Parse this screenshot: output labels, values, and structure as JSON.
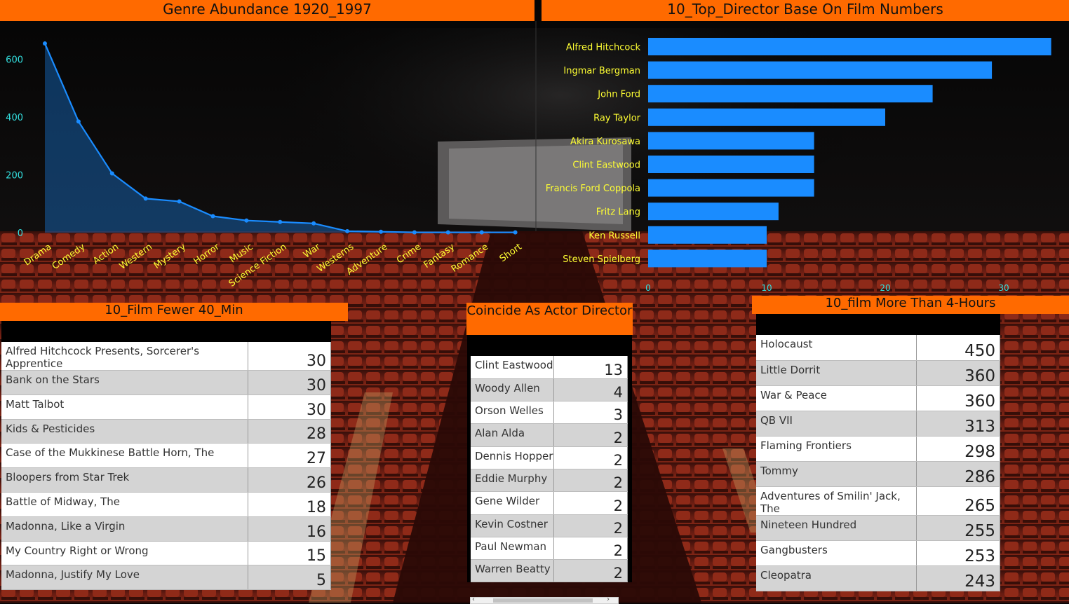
{
  "titles": {
    "genre": "Genre Abundance 1920_1997",
    "director": "10_Top_Director Base On Film Numbers",
    "short_films": "10_Film Fewer 40_Min",
    "actor_director": "Coincide As Actor Director",
    "long_films": "10_film More Than 4-Hours"
  },
  "colors": {
    "header": "#ff6a00",
    "bar": "#1a8cff",
    "line": "#1a8cff",
    "category_label": "#ffff33",
    "axis_tick": "#33e0e0"
  },
  "chart_data": [
    {
      "type": "area",
      "title": "Genre Abundance 1920_1997",
      "categories": [
        "Drama",
        "Comedy",
        "Action",
        "Western",
        "Mystery",
        "Horror",
        "Music",
        "Science Fiction",
        "War",
        "Westerns",
        "Adventure",
        "Crime",
        "Fantasy",
        "Romance",
        "Short"
      ],
      "values": [
        655,
        385,
        205,
        118,
        108,
        57,
        42,
        37,
        32,
        5,
        3,
        1,
        1,
        1,
        1
      ],
      "yticks": [
        0,
        200,
        400,
        600
      ],
      "ylim": [
        0,
        660
      ],
      "grid": false
    },
    {
      "type": "bar",
      "orientation": "horizontal",
      "title": "10_Top_Director Base On Film Numbers",
      "categories": [
        "Alfred Hitchcock",
        "Ingmar Bergman",
        "John Ford",
        "Ray Taylor",
        "Akira Kurosawa",
        "Clint Eastwood",
        "Francis Ford Coppola",
        "Fritz Lang",
        "Ken Russell",
        "Steven Spielberg"
      ],
      "values": [
        34,
        29,
        24,
        20,
        14,
        14,
        14,
        11,
        10,
        10
      ],
      "xticks": [
        0,
        10,
        20,
        30
      ],
      "xlim": [
        0,
        35
      ],
      "grid": false
    },
    {
      "type": "table",
      "title": "10_Film Fewer 40_Min",
      "rows": [
        {
          "name": "Alfred Hitchcock Presents, Sorcerer's Apprentice",
          "value": "30"
        },
        {
          "name": "Bank on the Stars",
          "value": "30"
        },
        {
          "name": "Matt Talbot",
          "value": "30"
        },
        {
          "name": "Kids & Pesticides",
          "value": "28"
        },
        {
          "name": "Case of the Mukkinese Battle Horn, The",
          "value": "27"
        },
        {
          "name": "Bloopers from Star Trek",
          "value": "26"
        },
        {
          "name": "Battle of Midway, The",
          "value": "18"
        },
        {
          "name": "Madonna, Like a Virgin",
          "value": "16"
        },
        {
          "name": "My Country Right or Wrong",
          "value": "15"
        },
        {
          "name": "Madonna, Justify My Love",
          "value": "5"
        }
      ]
    },
    {
      "type": "table",
      "title": "Coincide As Actor Director",
      "rows": [
        {
          "name": "Clint Eastwood",
          "value": "13"
        },
        {
          "name": "Woody Allen",
          "value": "4"
        },
        {
          "name": "Orson Welles",
          "value": "3"
        },
        {
          "name": "Alan Alda",
          "value": "2"
        },
        {
          "name": "Dennis Hopper",
          "value": "2"
        },
        {
          "name": "Eddie Murphy",
          "value": "2"
        },
        {
          "name": "Gene Wilder",
          "value": "2"
        },
        {
          "name": "Kevin Costner",
          "value": "2"
        },
        {
          "name": "Paul Newman",
          "value": "2"
        },
        {
          "name": "Warren Beatty",
          "value": "2"
        }
      ]
    },
    {
      "type": "table",
      "title": "10_film More Than 4-Hours",
      "rows": [
        {
          "name": "Holocaust",
          "value": "450"
        },
        {
          "name": "Little Dorrit",
          "value": "360"
        },
        {
          "name": "War & Peace",
          "value": "360"
        },
        {
          "name": "QB VII",
          "value": "313"
        },
        {
          "name": "Flaming Frontiers",
          "value": "298"
        },
        {
          "name": "Tommy",
          "value": "286"
        },
        {
          "name": "Adventures of Smilin' Jack, The",
          "value": "265"
        },
        {
          "name": "Nineteen Hundred",
          "value": "255"
        },
        {
          "name": "Gangbusters",
          "value": "253"
        },
        {
          "name": "Cleopatra",
          "value": "243"
        }
      ]
    }
  ]
}
